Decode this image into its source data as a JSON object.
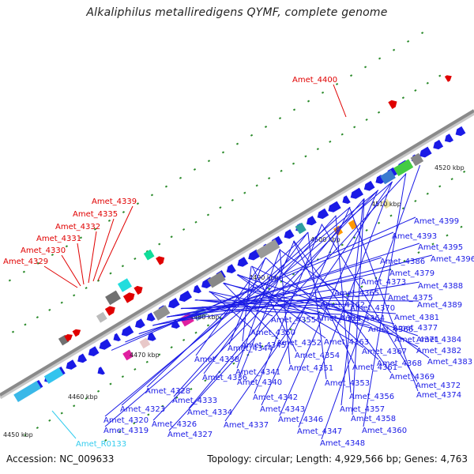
{
  "title": "Alkaliphilus metalliredigens QYMF, complete genome",
  "footer": {
    "accession": "Accession: NC_009633",
    "topology": "Topology: circular; Length: 4,929,566 bp; Genes: 4,763"
  },
  "colors": {
    "forward_label": "#e00000",
    "reverse_label": "#1a1ae6",
    "rna_label": "#33ccee",
    "backbone": "#8a8a8a",
    "tick": "#2a8a2a"
  },
  "scale_ticks": [
    "4450 kbp",
    "4460 kbp",
    "4470 kbp",
    "4480 kbp",
    "4490 kbp",
    "4500 kbp",
    "4510 kbp",
    "4520 kbp"
  ],
  "forward_labels": [
    "Amet_4400",
    "Amet_4339",
    "Amet_4335",
    "Amet_4332",
    "Amet_4331",
    "Amet_4330",
    "Amet_4329"
  ],
  "rna_labels": [
    "Amet_R0133"
  ],
  "reverse_labels": [
    "Amet_4399",
    "Amet_4393",
    "Amet_4395",
    "Amet_4396",
    "Amet_4386",
    "Amet_4379",
    "Amet_4373",
    "Amet_4388",
    "Amet_4365",
    "Amet_4375",
    "Amet_4362",
    "Amet_4370",
    "Amet_4389",
    "Amet_4364",
    "Amet_4381",
    "Amet_4355",
    "Amet_4359",
    "Amet_4366",
    "Amet_4377",
    "Amet_4350",
    "Amet_4352",
    "Amet_4363",
    "Amet_4371",
    "Amet_4384",
    "Amet_4345",
    "Amet_4367",
    "Amet_4382",
    "Amet_4344",
    "Amet_4354",
    "Amet_4368",
    "Amet_4383",
    "Amet_4338",
    "Amet_4351",
    "Amet_4361",
    "Amet_4341",
    "Amet_4369",
    "Amet_4336",
    "Amet_4340",
    "Amet_4353",
    "Amet_4372",
    "Amet_4328",
    "Amet_4342",
    "Amet_4356",
    "Amet_4374",
    "Amet_4333",
    "Amet_4343",
    "Amet_4357",
    "Amet_4323",
    "Amet_4334",
    "Amet_4346",
    "Amet_4358",
    "Amet_4326",
    "Amet_4337",
    "Amet_4320",
    "Amet_4347",
    "Amet_4360",
    "Amet_4319",
    "Amet_4327",
    "Amet_4348"
  ]
}
